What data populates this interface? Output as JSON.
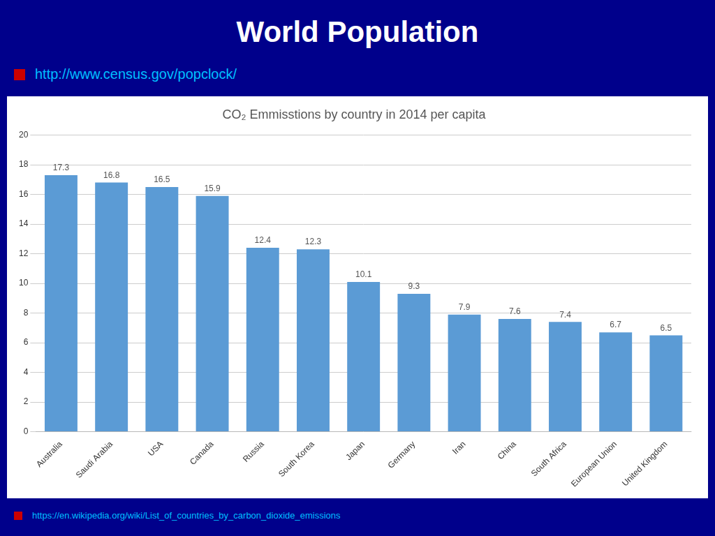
{
  "title": "World Population",
  "subtitle": "http://www.census.gov/popclock/",
  "annotations": [
    "https://en.wikipedia.org/wiki/List_of_countries_by_carbon_dioxide_emissions"
  ],
  "chart_data": {
    "type": "bar",
    "title": "CO₂ Emmisstions by country in 2014 per capita",
    "categories": [
      "Australia",
      "Saudi Arabia",
      "USA",
      "Canada",
      "Russia",
      "South Korea",
      "Japan",
      "Germany",
      "Iran",
      "China",
      "South Africa",
      "European Union",
      "United Kingdom"
    ],
    "values": [
      17.3,
      16.8,
      16.5,
      15.9,
      12.4,
      12.3,
      10.1,
      9.3,
      7.9,
      7.6,
      7.4,
      6.7,
      6.5
    ],
    "color": "#5B9BD5",
    "ylim": [
      0,
      20
    ],
    "yticks": [
      0,
      2,
      4,
      6,
      8,
      10,
      12,
      14,
      16,
      18,
      20
    ],
    "grid": true,
    "data_labels": true
  }
}
